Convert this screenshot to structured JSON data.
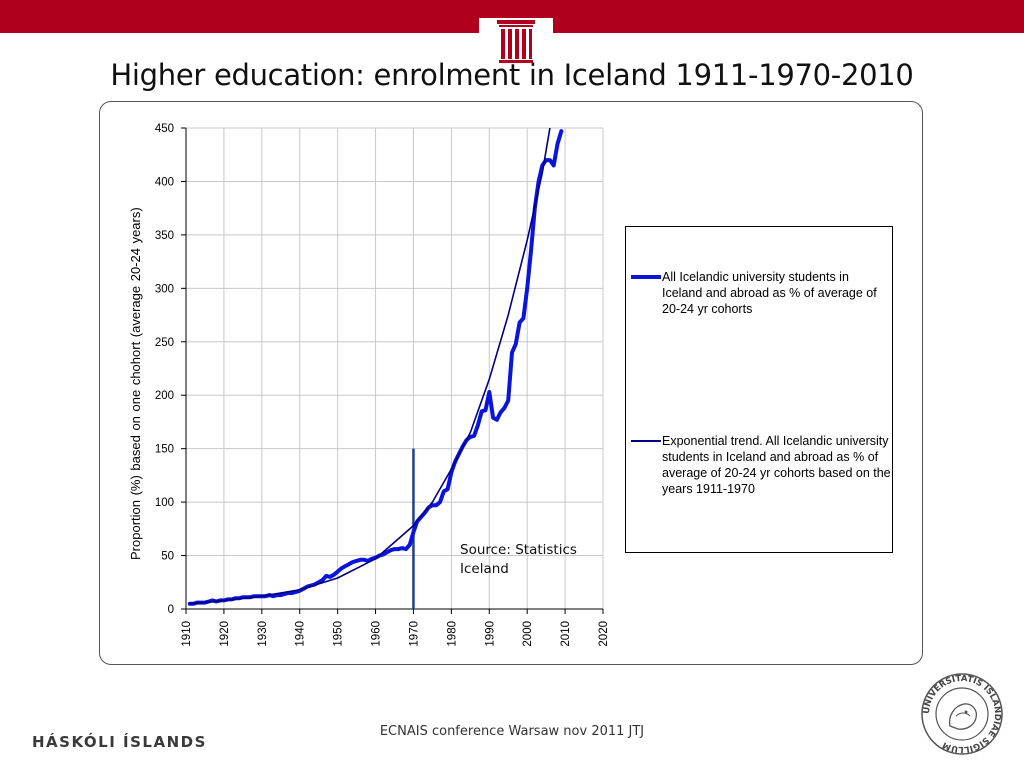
{
  "slide": {
    "title": "Higher education: enrolment in Iceland 1911-1970-2010",
    "footer_center": "ECNAIS conference Warsaw nov 2011 JTJ",
    "footer_left": "HÁSKÓLI ÍSLANDS",
    "seal_text": "UNIVERSITATIS ISLANDIAE SIGILLUM",
    "colors": {
      "topbar": "#b0001e",
      "series_actual": "#0a14dc",
      "series_trend": "#000080",
      "marker": "#1f3f8f"
    }
  },
  "chart_data": {
    "type": "line",
    "title": "",
    "xlabel": "",
    "ylabel": "Proportion (%) based on one chohort (average  20-24 years)",
    "xlim": [
      1910,
      2020
    ],
    "ylim": [
      0,
      450
    ],
    "x_ticks": [
      "1910",
      "1920",
      "1930",
      "1940",
      "1950",
      "1960",
      "1970",
      "1980",
      "1990",
      "2000",
      "2010",
      "2020"
    ],
    "y_ticks": [
      "0",
      "50",
      "100",
      "150",
      "200",
      "250",
      "300",
      "350",
      "400",
      "450"
    ],
    "grid": true,
    "legend_position": "right",
    "annotations": [
      {
        "text": "Source: Statistics Iceland"
      }
    ],
    "vertical_marker": {
      "x": 1970,
      "y_from": 0,
      "y_to": 150
    },
    "series": [
      {
        "name": "All Icelandic university students in Iceland and abroad as % of average of 20-24 yr cohorts",
        "style": "thick",
        "color": "#0a14dc",
        "points": [
          [
            1911,
            5
          ],
          [
            1912,
            5
          ],
          [
            1913,
            6
          ],
          [
            1914,
            6
          ],
          [
            1915,
            6
          ],
          [
            1916,
            7
          ],
          [
            1917,
            8
          ],
          [
            1918,
            7
          ],
          [
            1919,
            8
          ],
          [
            1920,
            8
          ],
          [
            1921,
            9
          ],
          [
            1922,
            9
          ],
          [
            1923,
            10
          ],
          [
            1924,
            10
          ],
          [
            1925,
            11
          ],
          [
            1926,
            11
          ],
          [
            1927,
            11
          ],
          [
            1928,
            12
          ],
          [
            1929,
            12
          ],
          [
            1930,
            12
          ],
          [
            1931,
            12
          ],
          [
            1932,
            13
          ],
          [
            1933,
            12
          ],
          [
            1934,
            13
          ],
          [
            1935,
            13
          ],
          [
            1936,
            14
          ],
          [
            1937,
            15
          ],
          [
            1938,
            15
          ],
          [
            1939,
            16
          ],
          [
            1940,
            17
          ],
          [
            1941,
            19
          ],
          [
            1942,
            21
          ],
          [
            1943,
            22
          ],
          [
            1944,
            23
          ],
          [
            1945,
            25
          ],
          [
            1946,
            27
          ],
          [
            1947,
            31
          ],
          [
            1948,
            30
          ],
          [
            1949,
            32
          ],
          [
            1950,
            35
          ],
          [
            1951,
            38
          ],
          [
            1952,
            40
          ],
          [
            1953,
            42
          ],
          [
            1954,
            44
          ],
          [
            1955,
            45
          ],
          [
            1956,
            46
          ],
          [
            1957,
            46
          ],
          [
            1958,
            45
          ],
          [
            1959,
            47
          ],
          [
            1960,
            48
          ],
          [
            1961,
            50
          ],
          [
            1962,
            51
          ],
          [
            1963,
            53
          ],
          [
            1964,
            55
          ],
          [
            1965,
            56
          ],
          [
            1966,
            56
          ],
          [
            1967,
            57
          ],
          [
            1968,
            56
          ],
          [
            1969,
            60
          ],
          [
            1970,
            72
          ],
          [
            1971,
            82
          ],
          [
            1972,
            86
          ],
          [
            1973,
            90
          ],
          [
            1974,
            95
          ],
          [
            1975,
            97
          ],
          [
            1976,
            97
          ],
          [
            1977,
            100
          ],
          [
            1978,
            110
          ],
          [
            1979,
            112
          ],
          [
            1980,
            128
          ],
          [
            1981,
            138
          ],
          [
            1982,
            145
          ],
          [
            1983,
            152
          ],
          [
            1984,
            158
          ],
          [
            1985,
            161
          ],
          [
            1986,
            162
          ],
          [
            1987,
            172
          ],
          [
            1988,
            185
          ],
          [
            1989,
            186
          ],
          [
            1990,
            203
          ],
          [
            1991,
            179
          ],
          [
            1992,
            177
          ],
          [
            1993,
            184
          ],
          [
            1994,
            188
          ],
          [
            1995,
            195
          ],
          [
            1996,
            240
          ],
          [
            1997,
            248
          ],
          [
            1998,
            268
          ],
          [
            1999,
            272
          ],
          [
            2000,
            300
          ],
          [
            2001,
            335
          ],
          [
            2002,
            375
          ],
          [
            2003,
            400
          ],
          [
            2004,
            415
          ],
          [
            2005,
            420
          ],
          [
            2006,
            420
          ],
          [
            2007,
            415
          ],
          [
            2008,
            435
          ],
          [
            2009,
            447
          ]
        ]
      },
      {
        "name": "Exponential trend. All Icelandic university students in Iceland and abroad as % of average of 20-24 yr cohorts based on the years 1911-1970",
        "style": "thin",
        "color": "#000080",
        "points": [
          [
            1911,
            5
          ],
          [
            1920,
            8
          ],
          [
            1930,
            12
          ],
          [
            1940,
            18
          ],
          [
            1950,
            29
          ],
          [
            1960,
            47
          ],
          [
            1970,
            78
          ],
          [
            1975,
            100
          ],
          [
            1980,
            131
          ],
          [
            1985,
            165
          ],
          [
            1990,
            215
          ],
          [
            1995,
            275
          ],
          [
            2000,
            345
          ],
          [
            2004,
            408
          ],
          [
            2006,
            450
          ]
        ]
      }
    ]
  }
}
